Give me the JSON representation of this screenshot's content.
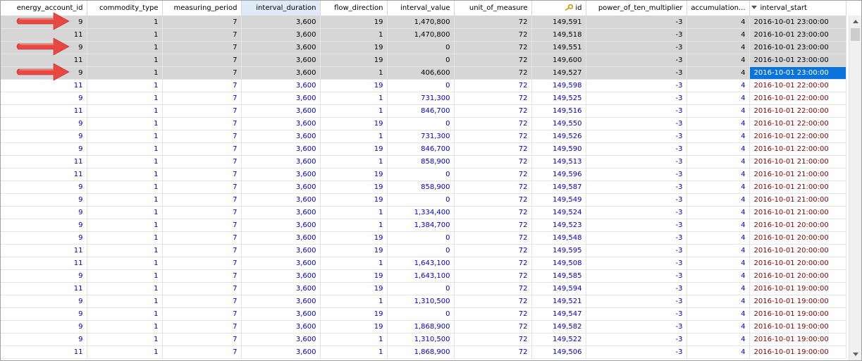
{
  "columns": [
    {
      "label": "energy_account_id"
    },
    {
      "label": "commodity_type"
    },
    {
      "label": "measuring_period"
    },
    {
      "label": "interval_duration"
    },
    {
      "label": "flow_direction"
    },
    {
      "label": "interval_value"
    },
    {
      "label": "unit_of_measure"
    },
    {
      "label": "id"
    },
    {
      "label": "power_of_ten_multiplier"
    },
    {
      "label": "accumulation..."
    },
    {
      "label": "interval_start"
    }
  ],
  "sorted_column": "interval_duration",
  "sort_desc_column": "interval_start",
  "rows": [
    [
      "9",
      "1",
      "7",
      "3,600",
      "19",
      "1,470,800",
      "72",
      "149,591",
      "-3",
      "4",
      "2016-10-01 23:00:00"
    ],
    [
      "11",
      "1",
      "7",
      "3,600",
      "1",
      "1,470,800",
      "72",
      "149,518",
      "-3",
      "4",
      "2016-10-01 23:00:00"
    ],
    [
      "9",
      "1",
      "7",
      "3,600",
      "19",
      "0",
      "72",
      "149,551",
      "-3",
      "4",
      "2016-10-01 23:00:00"
    ],
    [
      "11",
      "1",
      "7",
      "3,600",
      "19",
      "0",
      "72",
      "149,600",
      "-3",
      "4",
      "2016-10-01 23:00:00"
    ],
    [
      "9",
      "1",
      "7",
      "3,600",
      "1",
      "406,600",
      "72",
      "149,527",
      "-3",
      "4",
      "2016-10-01 23:00:00"
    ],
    [
      "11",
      "1",
      "7",
      "3,600",
      "19",
      "0",
      "72",
      "149,598",
      "-3",
      "4",
      "2016-10-01 22:00:00"
    ],
    [
      "9",
      "1",
      "7",
      "3,600",
      "1",
      "731,300",
      "72",
      "149,525",
      "-3",
      "4",
      "2016-10-01 22:00:00"
    ],
    [
      "11",
      "1",
      "7",
      "3,600",
      "1",
      "846,700",
      "72",
      "149,516",
      "-3",
      "4",
      "2016-10-01 22:00:00"
    ],
    [
      "9",
      "1",
      "7",
      "3,600",
      "19",
      "0",
      "72",
      "149,550",
      "-3",
      "4",
      "2016-10-01 22:00:00"
    ],
    [
      "9",
      "1",
      "7",
      "3,600",
      "1",
      "731,300",
      "72",
      "149,526",
      "-3",
      "4",
      "2016-10-01 22:00:00"
    ],
    [
      "9",
      "1",
      "7",
      "3,600",
      "19",
      "846,700",
      "72",
      "149,590",
      "-3",
      "4",
      "2016-10-01 22:00:00"
    ],
    [
      "11",
      "1",
      "7",
      "3,600",
      "1",
      "858,900",
      "72",
      "149,513",
      "-3",
      "4",
      "2016-10-01 21:00:00"
    ],
    [
      "11",
      "1",
      "7",
      "3,600",
      "19",
      "0",
      "72",
      "149,596",
      "-3",
      "4",
      "2016-10-01 21:00:00"
    ],
    [
      "9",
      "1",
      "7",
      "3,600",
      "19",
      "858,900",
      "72",
      "149,587",
      "-3",
      "4",
      "2016-10-01 21:00:00"
    ],
    [
      "9",
      "1",
      "7",
      "3,600",
      "19",
      "0",
      "72",
      "149,549",
      "-3",
      "4",
      "2016-10-01 21:00:00"
    ],
    [
      "9",
      "1",
      "7",
      "3,600",
      "1",
      "1,334,400",
      "72",
      "149,524",
      "-3",
      "4",
      "2016-10-01 21:00:00"
    ],
    [
      "9",
      "1",
      "7",
      "3,600",
      "1",
      "1,384,700",
      "72",
      "149,523",
      "-3",
      "4",
      "2016-10-01 20:00:00"
    ],
    [
      "9",
      "1",
      "7",
      "3,600",
      "19",
      "0",
      "72",
      "149,548",
      "-3",
      "4",
      "2016-10-01 20:00:00"
    ],
    [
      "11",
      "1",
      "7",
      "3,600",
      "19",
      "0",
      "72",
      "149,595",
      "-3",
      "4",
      "2016-10-01 20:00:00"
    ],
    [
      "11",
      "1",
      "7",
      "3,600",
      "1",
      "1,643,100",
      "72",
      "149,508",
      "-3",
      "4",
      "2016-10-01 20:00:00"
    ],
    [
      "9",
      "1",
      "7",
      "3,600",
      "19",
      "1,643,100",
      "72",
      "149,585",
      "-3",
      "4",
      "2016-10-01 20:00:00"
    ],
    [
      "11",
      "1",
      "7",
      "3,600",
      "19",
      "0",
      "72",
      "149,594",
      "-3",
      "4",
      "2016-10-01 19:00:00"
    ],
    [
      "9",
      "1",
      "7",
      "3,600",
      "1",
      "1,310,500",
      "72",
      "149,521",
      "-3",
      "4",
      "2016-10-01 19:00:00"
    ],
    [
      "9",
      "1",
      "7",
      "3,600",
      "19",
      "0",
      "72",
      "149,547",
      "-3",
      "4",
      "2016-10-01 19:00:00"
    ],
    [
      "9",
      "1",
      "7",
      "3,600",
      "19",
      "1,868,900",
      "72",
      "149,582",
      "-3",
      "4",
      "2016-10-01 19:00:00"
    ],
    [
      "9",
      "1",
      "7",
      "3,600",
      "1",
      "1,310,500",
      "72",
      "149,522",
      "-3",
      "4",
      "2016-10-01 19:00:00"
    ],
    [
      "11",
      "1",
      "7",
      "3,600",
      "1",
      "1,868,900",
      "72",
      "149,506",
      "-3",
      "4",
      "2016-10-01 19:00:00"
    ]
  ],
  "selected_rows": [
    0,
    1,
    2,
    3,
    4
  ],
  "focused_cell": {
    "row": 4,
    "col": 10
  },
  "arrow_rows": [
    0,
    2,
    4
  ],
  "colors": {
    "header_sorted": "#dfeaf7",
    "selected_row": "#d6d6d6",
    "focused_cell": "#0a74dc",
    "number_text": "#0000c8",
    "date_text": "#8b0000",
    "arrow": "#e8413a"
  },
  "icons": {
    "id_column": "key-icon",
    "interval_start_column": "sort-descending-icon"
  }
}
